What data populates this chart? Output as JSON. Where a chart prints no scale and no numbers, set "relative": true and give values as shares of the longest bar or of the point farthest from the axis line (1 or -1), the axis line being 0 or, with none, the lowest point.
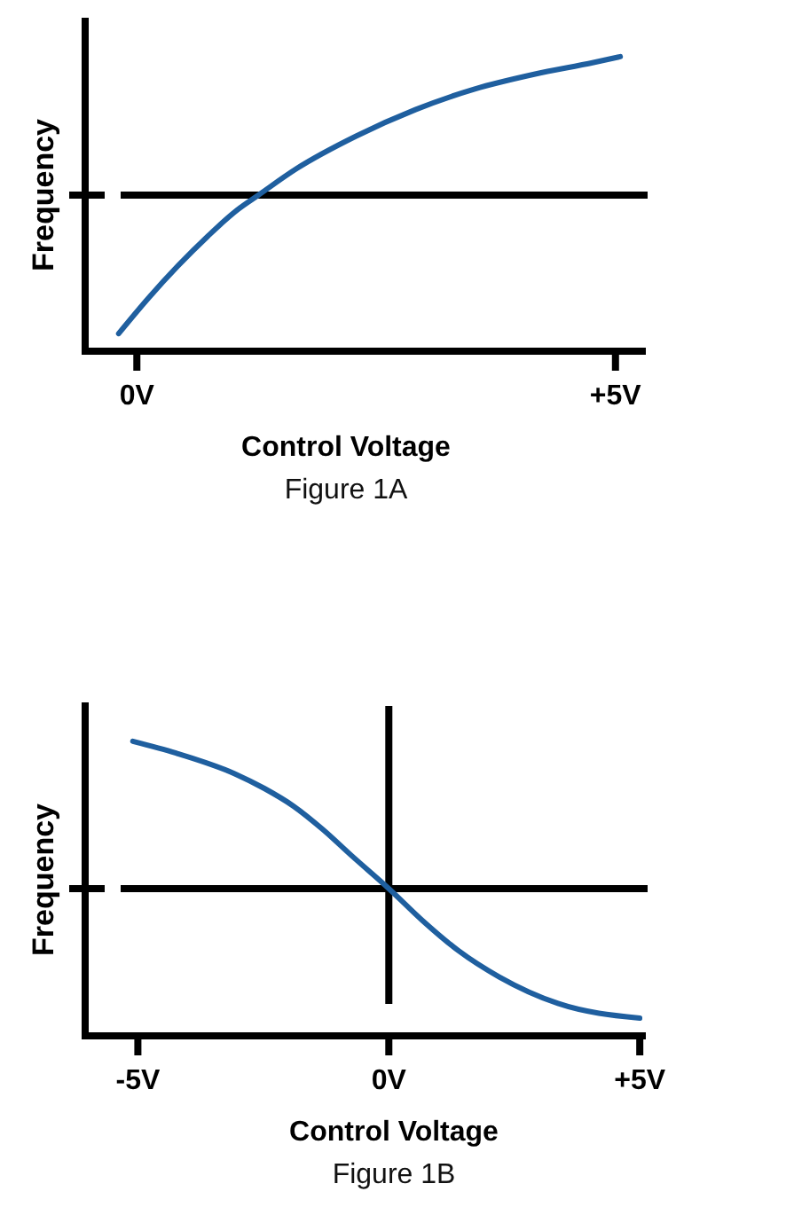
{
  "chart_data": [
    {
      "type": "line",
      "xlabel": "Control Voltage",
      "ylabel": "Frequency",
      "annotations": [
        "Figure 1A"
      ],
      "relative": true,
      "color": "#1f5f9f",
      "x": [
        -0.19,
        0.12,
        0.43,
        0.74,
        1.05,
        1.27,
        1.67,
        2.29,
        2.91,
        3.53,
        4.15,
        4.77,
        5.05
      ],
      "values": [
        0.06,
        0.18,
        0.29,
        0.39,
        0.48,
        0.53,
        0.62,
        0.73,
        0.82,
        0.89,
        0.94,
        0.98,
        1
      ],
      "xlim": [
        -0.54,
        5.28
      ],
      "xticks": [
        {
          "value": 0,
          "label": "0V"
        },
        {
          "value": 5,
          "label": "+5V"
        }
      ],
      "ref_lines": [
        {
          "axis": "y",
          "value": 0.53,
          "color": "#000000"
        }
      ]
    },
    {
      "type": "line",
      "xlabel": "Control Voltage",
      "ylabel": "Frequency",
      "annotations": [
        "Figure 1B"
      ],
      "relative": true,
      "color": "#1f5f9f",
      "x": [
        -5.1,
        -4.24,
        -3.07,
        -2.48,
        -1.9,
        -1.31,
        -0.73,
        0,
        0.68,
        1.38,
        2.2,
        3.37,
        5
      ],
      "values": [
        1,
        0.96,
        0.89,
        0.84,
        0.78,
        0.7,
        0.61,
        0.5,
        0.39,
        0.29,
        0.2,
        0.11,
        0.06
      ],
      "xlim": [
        -6.05,
        5.05
      ],
      "xticks": [
        {
          "value": -5,
          "label": "-5V"
        },
        {
          "value": 0,
          "label": "0V"
        },
        {
          "value": 5,
          "label": "+5V"
        }
      ],
      "ref_lines": [
        {
          "axis": "y",
          "value": 0.5,
          "color": "#000000"
        },
        {
          "axis": "x",
          "value": 0,
          "color": "#000000"
        }
      ]
    }
  ]
}
